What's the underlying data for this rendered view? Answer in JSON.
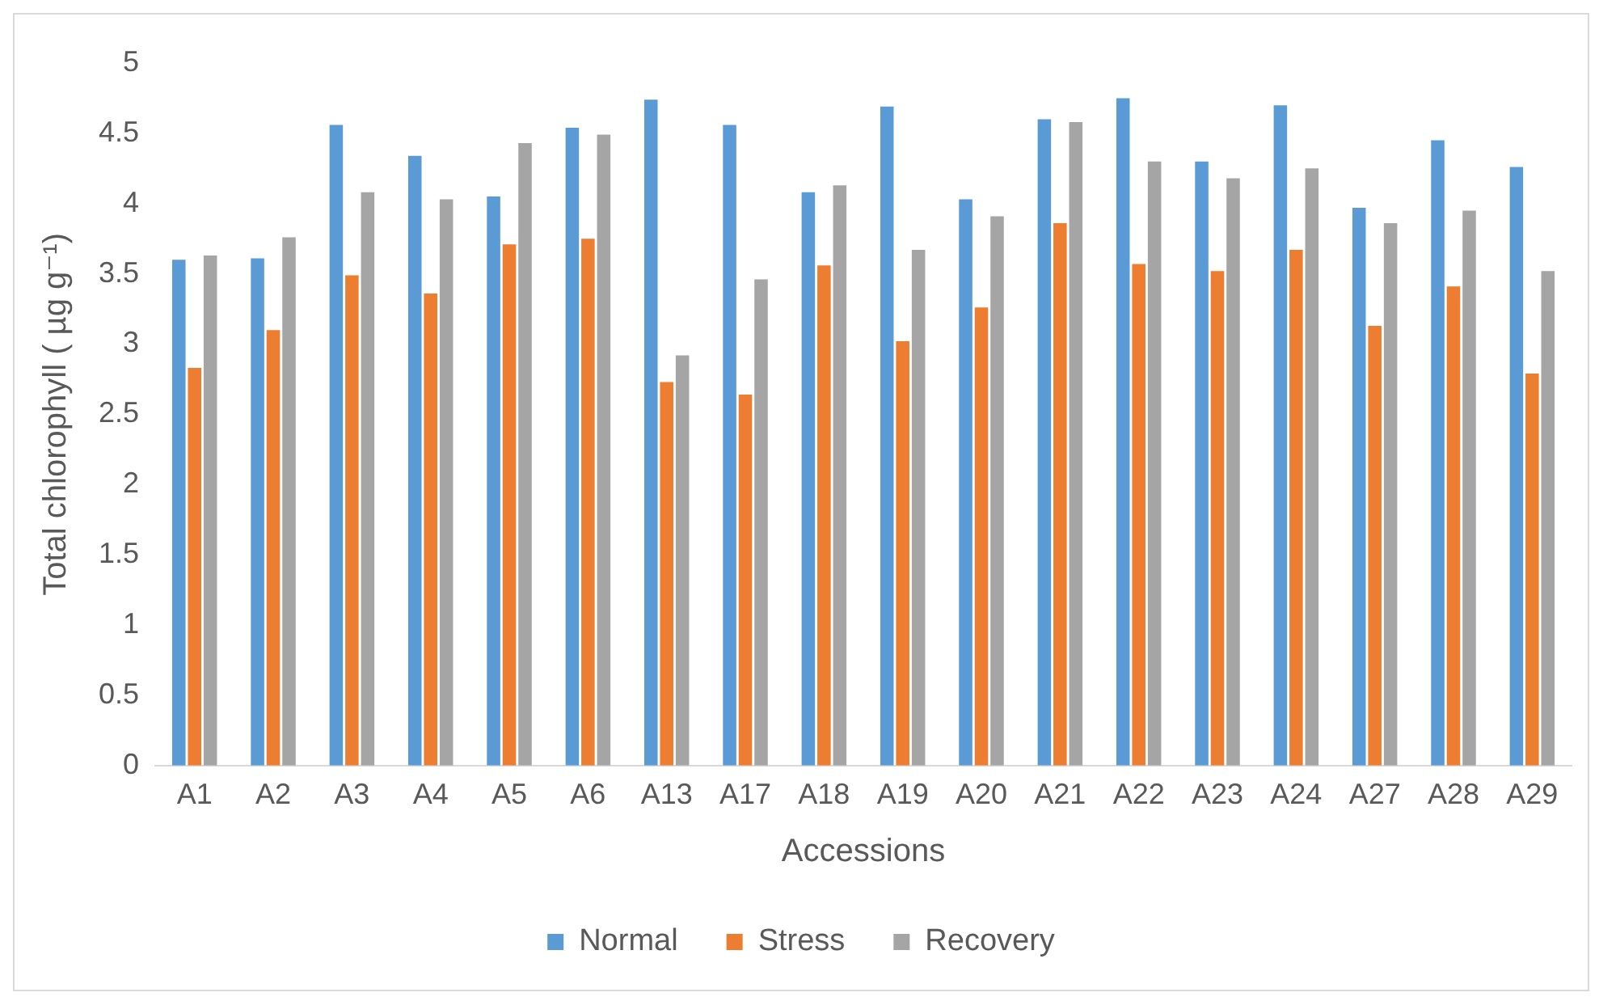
{
  "chart_data": {
    "type": "bar",
    "xlabel": "Accessions",
    "ylabel": "Total chlorophyll ( µg g⁻¹)",
    "categories": [
      "A1",
      "A2",
      "A3",
      "A4",
      "A5",
      "A6",
      "A13",
      "A17",
      "A18",
      "A19",
      "A20",
      "A21",
      "A22",
      "A23",
      "A24",
      "A27",
      "A28",
      "A29"
    ],
    "series": [
      {
        "name": "Normal",
        "color": "#5b9bd5",
        "values": [
          3.6,
          3.61,
          4.56,
          4.34,
          4.05,
          4.54,
          4.74,
          4.56,
          4.08,
          4.69,
          4.03,
          4.6,
          4.75,
          4.3,
          4.7,
          3.97,
          4.45,
          4.26
        ]
      },
      {
        "name": "Stress",
        "color": "#ed7d31",
        "values": [
          2.83,
          3.1,
          3.49,
          3.36,
          3.71,
          3.75,
          2.73,
          2.64,
          3.56,
          3.02,
          3.26,
          3.86,
          3.57,
          3.52,
          3.67,
          3.13,
          3.41,
          2.79
        ]
      },
      {
        "name": "Recovery",
        "color": "#a5a5a5",
        "values": [
          3.63,
          3.76,
          4.08,
          4.03,
          4.43,
          4.49,
          2.92,
          3.46,
          4.13,
          3.67,
          3.91,
          4.58,
          4.3,
          4.18,
          4.25,
          3.86,
          3.95,
          3.52
        ]
      }
    ],
    "ylim": [
      0,
      5
    ],
    "yticks": [
      0,
      0.5,
      1,
      1.5,
      2,
      2.5,
      3,
      3.5,
      4,
      4.5,
      5
    ],
    "grid": false,
    "legend": "bottom"
  }
}
